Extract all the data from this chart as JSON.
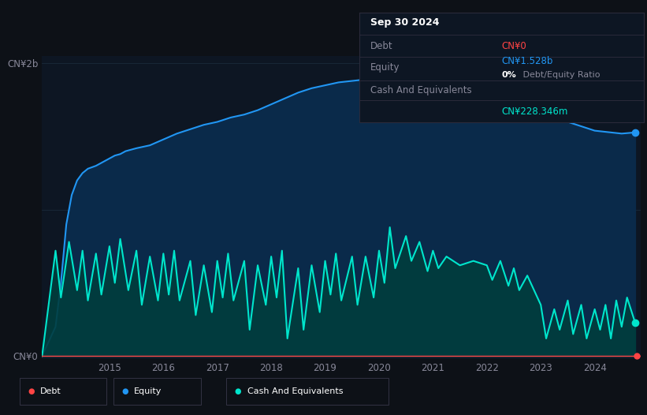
{
  "background_color": "#0d1117",
  "plot_bg_color": "#0d1623",
  "ylabel_top": "CN¥2b",
  "ylabel_bottom": "CN¥0",
  "x_ticks": [
    2015,
    2016,
    2017,
    2018,
    2019,
    2020,
    2021,
    2022,
    2023,
    2024
  ],
  "equity_color": "#2196f3",
  "equity_fill": "#0a2a4a",
  "cash_color": "#00e5cc",
  "cash_fill": "#003d3d",
  "debt_color": "#ff4444",
  "legend": [
    {
      "label": "Debt",
      "color": "#ff4444"
    },
    {
      "label": "Equity",
      "color": "#2196f3"
    },
    {
      "label": "Cash And Equivalents",
      "color": "#00e5cc"
    }
  ],
  "title_box": {
    "date": "Sep 30 2024",
    "box_bg": "#0d1623",
    "box_border": "#2a2a3a"
  },
  "equity_data": {
    "x": [
      2013.75,
      2014.0,
      2014.1,
      2014.2,
      2014.3,
      2014.4,
      2014.5,
      2014.6,
      2014.75,
      2014.85,
      2014.95,
      2015.0,
      2015.1,
      2015.2,
      2015.3,
      2015.5,
      2015.75,
      2016.0,
      2016.25,
      2016.5,
      2016.75,
      2017.0,
      2017.25,
      2017.5,
      2017.75,
      2018.0,
      2018.25,
      2018.5,
      2018.75,
      2019.0,
      2019.25,
      2019.5,
      2019.75,
      2020.0,
      2020.1,
      2020.25,
      2020.5,
      2020.6,
      2020.75,
      2021.0,
      2021.25,
      2021.5,
      2021.75,
      2022.0,
      2022.25,
      2022.5,
      2022.75,
      2023.0,
      2023.25,
      2023.5,
      2023.75,
      2024.0,
      2024.25,
      2024.5,
      2024.75
    ],
    "y": [
      0.0,
      0.2,
      0.5,
      0.9,
      1.1,
      1.2,
      1.25,
      1.28,
      1.3,
      1.32,
      1.34,
      1.35,
      1.37,
      1.38,
      1.4,
      1.42,
      1.44,
      1.48,
      1.52,
      1.55,
      1.58,
      1.6,
      1.63,
      1.65,
      1.68,
      1.72,
      1.76,
      1.8,
      1.83,
      1.85,
      1.87,
      1.88,
      1.89,
      1.9,
      1.91,
      1.91,
      1.9,
      1.9,
      1.89,
      1.88,
      1.87,
      1.86,
      1.85,
      1.83,
      1.8,
      1.77,
      1.74,
      1.7,
      1.65,
      1.6,
      1.57,
      1.54,
      1.53,
      1.52,
      1.528
    ]
  },
  "cash_data": {
    "x": [
      2013.75,
      2014.0,
      2014.1,
      2014.25,
      2014.4,
      2014.5,
      2014.6,
      2014.75,
      2014.85,
      2015.0,
      2015.1,
      2015.2,
      2015.35,
      2015.5,
      2015.6,
      2015.75,
      2015.9,
      2016.0,
      2016.1,
      2016.2,
      2016.3,
      2016.5,
      2016.6,
      2016.75,
      2016.9,
      2017.0,
      2017.1,
      2017.2,
      2017.3,
      2017.5,
      2017.6,
      2017.75,
      2017.9,
      2018.0,
      2018.1,
      2018.2,
      2018.3,
      2018.5,
      2018.6,
      2018.75,
      2018.9,
      2019.0,
      2019.1,
      2019.2,
      2019.3,
      2019.5,
      2019.6,
      2019.75,
      2019.9,
      2020.0,
      2020.1,
      2020.2,
      2020.3,
      2020.5,
      2020.6,
      2020.75,
      2020.9,
      2021.0,
      2021.1,
      2021.25,
      2021.5,
      2021.75,
      2022.0,
      2022.1,
      2022.25,
      2022.4,
      2022.5,
      2022.6,
      2022.75,
      2023.0,
      2023.1,
      2023.25,
      2023.35,
      2023.5,
      2023.6,
      2023.75,
      2023.85,
      2024.0,
      2024.1,
      2024.2,
      2024.3,
      2024.4,
      2024.5,
      2024.6,
      2024.75
    ],
    "y": [
      0.0,
      0.72,
      0.4,
      0.78,
      0.45,
      0.72,
      0.38,
      0.7,
      0.42,
      0.75,
      0.5,
      0.8,
      0.45,
      0.72,
      0.35,
      0.68,
      0.38,
      0.7,
      0.42,
      0.72,
      0.38,
      0.65,
      0.28,
      0.62,
      0.3,
      0.65,
      0.4,
      0.7,
      0.38,
      0.65,
      0.18,
      0.62,
      0.35,
      0.68,
      0.4,
      0.72,
      0.12,
      0.6,
      0.18,
      0.62,
      0.3,
      0.65,
      0.42,
      0.7,
      0.38,
      0.68,
      0.35,
      0.68,
      0.4,
      0.72,
      0.5,
      0.88,
      0.6,
      0.82,
      0.65,
      0.78,
      0.58,
      0.72,
      0.6,
      0.68,
      0.62,
      0.65,
      0.62,
      0.52,
      0.65,
      0.48,
      0.6,
      0.45,
      0.55,
      0.35,
      0.12,
      0.32,
      0.18,
      0.38,
      0.15,
      0.35,
      0.12,
      0.32,
      0.18,
      0.35,
      0.12,
      0.38,
      0.2,
      0.4,
      0.228
    ]
  },
  "debt_data": {
    "x": [
      2013.75,
      2024.78
    ],
    "y": [
      0.0,
      0.0
    ]
  }
}
